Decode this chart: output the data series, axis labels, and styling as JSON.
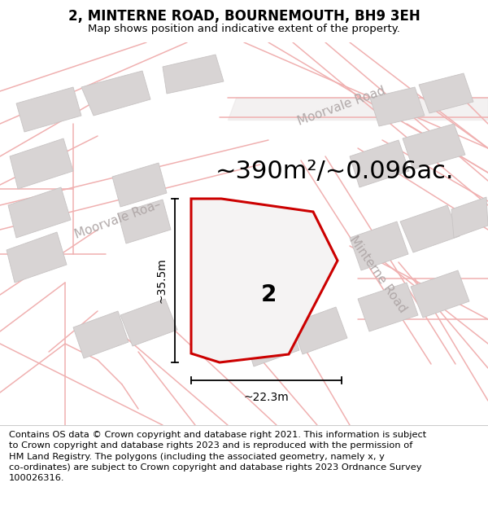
{
  "title": "2, MINTERNE ROAD, BOURNEMOUTH, BH9 3EH",
  "subtitle": "Map shows position and indicative extent of the property.",
  "area_label": "~390m²/~0.096ac.",
  "property_label": "2",
  "dim_width_label": "~22.3m",
  "dim_height_label": "~35.5m",
  "road_label_moorvale1": "Moorvale Roa—",
  "road_label_moorvale2": "Moorvale Road",
  "road_label_minterne": "Minterne Road",
  "copyright_text": "Contains OS data © Crown copyright and database right 2021. This information is subject\nto Crown copyright and database rights 2023 and is reproduced with the permission of\nHM Land Registry. The polygons (including the associated geometry, namely x, y\nco-ordinates) are subject to Crown copyright and database rights 2023 Ordnance Survey\n100026316.",
  "bg_color": "#f2f0f0",
  "road_fill_color": "#ffffff",
  "road_line_color": "#f0b0b0",
  "road_band_color": "#e8e0e0",
  "building_color": "#d8d4d4",
  "building_edge_color": "#c8c4c4",
  "plot_color": "#cc0000",
  "plot_fill": "#f5f3f3",
  "title_fontsize": 12,
  "subtitle_fontsize": 9.5,
  "area_fontsize": 22,
  "label_fontsize": 20,
  "dim_fontsize": 10,
  "road_fontsize": 12,
  "copyright_fontsize": 8.2
}
